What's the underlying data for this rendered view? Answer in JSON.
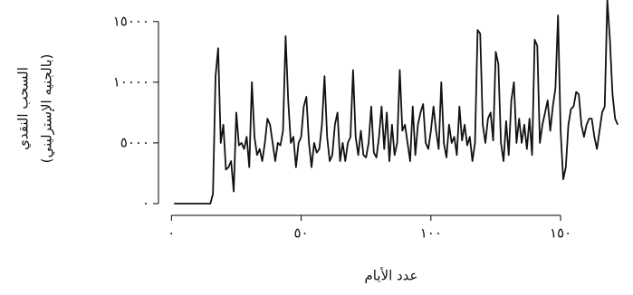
{
  "chart_data": {
    "type": "line",
    "y_label": [
      "السحب النقدي",
      "(بالجنيه الإسترليني)"
    ],
    "x_label": "عدد الأيام",
    "color": "#111111",
    "xlim": [
      -5,
      176.5
    ],
    "ylim": [
      -970,
      16400
    ],
    "xticks": [
      {
        "value": 0,
        "label": "٠"
      },
      {
        "value": 50,
        "label": "٥٠"
      },
      {
        "value": 100,
        "label": "١٠٠"
      },
      {
        "value": 150,
        "label": "١٥٠"
      }
    ],
    "yticks": [
      {
        "value": 0,
        "label": "٠"
      },
      {
        "value": 5000,
        "label": "٥٠٠٠"
      },
      {
        "value": 10000,
        "label": "١٠٠٠٠"
      },
      {
        "value": 15000,
        "label": "١٥٠٠٠"
      }
    ],
    "x": [
      1,
      2,
      3,
      4,
      5,
      6,
      7,
      8,
      9,
      10,
      11,
      12,
      13,
      14,
      15,
      16,
      17,
      18,
      19,
      20,
      21,
      22,
      23,
      24,
      25,
      26,
      27,
      28,
      29,
      30,
      31,
      32,
      33,
      34,
      35,
      36,
      37,
      38,
      39,
      40,
      41,
      42,
      43,
      44,
      45,
      46,
      47,
      48,
      49,
      50,
      51,
      52,
      53,
      54,
      55,
      56,
      57,
      58,
      59,
      60,
      61,
      62,
      63,
      64,
      65,
      66,
      67,
      68,
      69,
      70,
      71,
      72,
      73,
      74,
      75,
      76,
      77,
      78,
      79,
      80,
      81,
      82,
      83,
      84,
      85,
      86,
      87,
      88,
      89,
      90,
      91,
      92,
      93,
      94,
      95,
      96,
      97,
      98,
      99,
      100,
      101,
      102,
      103,
      104,
      105,
      106,
      107,
      108,
      109,
      110,
      111,
      112,
      113,
      114,
      115,
      116,
      117,
      118,
      119,
      120,
      121,
      122,
      123,
      124,
      125,
      126,
      127,
      128,
      129,
      130,
      131,
      132,
      133,
      134,
      135,
      136,
      137,
      138,
      139,
      140,
      141,
      142,
      143,
      144,
      145,
      146,
      147,
      148,
      149,
      150,
      151,
      152,
      153,
      154,
      155,
      156,
      157,
      158,
      159,
      160,
      161,
      162,
      163,
      164,
      165,
      166,
      167,
      168,
      169,
      170,
      171,
      172
    ],
    "values": [
      0,
      0,
      0,
      0,
      0,
      0,
      0,
      0,
      0,
      0,
      0,
      0,
      0,
      0,
      0,
      800,
      10500,
      12800,
      5000,
      6500,
      2800,
      3000,
      3500,
      1000,
      7500,
      4800,
      5000,
      4500,
      5500,
      3000,
      10000,
      5500,
      4000,
      4500,
      3500,
      5000,
      7000,
      6500,
      5000,
      3500,
      5000,
      4800,
      6000,
      13800,
      8500,
      5000,
      5500,
      3000,
      5000,
      5500,
      8000,
      8800,
      5000,
      3000,
      5000,
      4200,
      4500,
      6500,
      10500,
      5500,
      3500,
      4000,
      6500,
      7500,
      3500,
      5000,
      3500,
      5000,
      5500,
      11000,
      5500,
      4000,
      6000,
      4000,
      3800,
      5000,
      8000,
      4200,
      3800,
      5500,
      8000,
      4500,
      7500,
      3500,
      6500,
      4000,
      5000,
      11000,
      6000,
      6500,
      5000,
      3500,
      8000,
      4000,
      6500,
      7500,
      8200,
      5000,
      4500,
      6000,
      8000,
      6000,
      4500,
      10000,
      5000,
      3800,
      6500,
      5000,
      5500,
      4000,
      8000,
      5200,
      6500,
      4800,
      5500,
      3500,
      5000,
      14300,
      14000,
      6500,
      5000,
      7000,
      7500,
      5200,
      12500,
      11500,
      5000,
      3500,
      6800,
      4000,
      8500,
      10000,
      5000,
      7000,
      5000,
      6500,
      4500,
      7000,
      4000,
      13500,
      13000,
      5000,
      6500,
      7500,
      8500,
      6000,
      8000,
      9500,
      15500,
      6000,
      2000,
      3000,
      6500,
      7800,
      8000,
      9200,
      9000,
      6500,
      5500,
      6500,
      7000,
      7000,
      5500,
      4500,
      6000,
      7500,
      8000,
      16800,
      13500,
      9000,
      7000,
      6500
    ]
  }
}
